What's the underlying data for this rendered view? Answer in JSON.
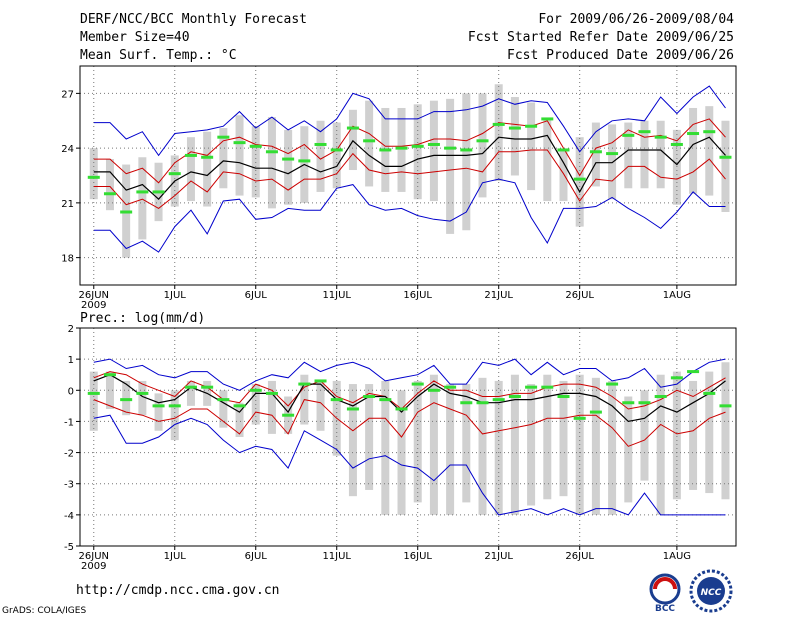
{
  "header": {
    "title": "DERF/NCC/BCC Monthly Forecast",
    "member_size": "Member Size=40",
    "variable_top": "Mean Surf. Temp.: °C",
    "period": "For 2009/06/26-2009/08/04",
    "started": "Fcst Started Refer Date 2009/06/25",
    "produced": "Fcst Produced Date 2009/06/26"
  },
  "footer": {
    "url": "http://cmdp.ncc.cma.gov.cn",
    "credit": "GrADS: COLA/IGES",
    "logo_bcc": "BCC",
    "logo_ncc": "NCC"
  },
  "colors": {
    "envelope": "#0000cc",
    "spread": "#cc0000",
    "mean": "#000000",
    "marker": "#33dd33",
    "box": "#d0d0d0",
    "grid": "#777777"
  },
  "chart_data": [
    {
      "type": "line",
      "title": "Mean Surf. Temp.: °C",
      "x_days": 40,
      "xticks": [
        {
          "day": 1,
          "label": "26JUN",
          "sub": "2009"
        },
        {
          "day": 6,
          "label": "1JUL"
        },
        {
          "day": 11,
          "label": "6JUL"
        },
        {
          "day": 16,
          "label": "11JUL"
        },
        {
          "day": 21,
          "label": "16JUL"
        },
        {
          "day": 26,
          "label": "21JUL"
        },
        {
          "day": 31,
          "label": "26JUL"
        },
        {
          "day": 37,
          "label": "1AUG"
        }
      ],
      "ylim": [
        16.5,
        28.5
      ],
      "yticks": [
        18,
        21,
        24,
        27
      ],
      "series": [
        {
          "name": "max",
          "values": [
            25.4,
            25.4,
            24.5,
            24.9,
            23.6,
            24.8,
            24.9,
            25.0,
            25.2,
            26.0,
            25.1,
            25.7,
            25.0,
            25.5,
            24.9,
            25.6,
            27.0,
            26.7,
            25.6,
            25.6,
            25.6,
            26.0,
            26.0,
            26.1,
            26.3,
            26.7,
            26.4,
            26.6,
            26.5,
            25.2,
            23.8,
            24.9,
            25.5,
            25.6,
            25.5,
            26.8,
            25.9,
            26.8,
            27.4,
            26.2
          ]
        },
        {
          "name": "upper",
          "values": [
            23.4,
            23.4,
            22.6,
            22.9,
            22.1,
            23.2,
            23.8,
            23.6,
            24.4,
            24.6,
            24.2,
            24.1,
            23.7,
            24.2,
            23.4,
            23.9,
            25.2,
            24.8,
            24.1,
            24.1,
            24.2,
            24.5,
            24.5,
            24.4,
            24.8,
            25.4,
            25.3,
            25.2,
            25.5,
            24.0,
            22.5,
            24.0,
            24.3,
            25.0,
            24.6,
            24.7,
            24.4,
            25.3,
            25.6,
            24.6
          ]
        },
        {
          "name": "mean",
          "values": [
            22.7,
            22.7,
            21.7,
            22.0,
            21.2,
            22.2,
            22.7,
            22.5,
            23.3,
            23.2,
            22.9,
            22.9,
            22.6,
            23.1,
            22.7,
            23.0,
            24.4,
            23.6,
            23.0,
            23.0,
            23.4,
            23.6,
            23.6,
            23.6,
            23.7,
            24.6,
            24.5,
            24.5,
            24.7,
            23.2,
            21.6,
            23.2,
            23.2,
            23.9,
            23.9,
            23.9,
            23.1,
            24.2,
            24.6,
            23.6
          ]
        },
        {
          "name": "lower",
          "values": [
            21.9,
            21.9,
            20.9,
            21.2,
            20.7,
            21.4,
            22.2,
            21.6,
            22.7,
            22.6,
            22.2,
            22.3,
            21.7,
            22.3,
            22.3,
            22.6,
            23.7,
            22.8,
            22.6,
            22.7,
            22.6,
            22.7,
            22.8,
            22.9,
            22.7,
            23.8,
            23.8,
            23.9,
            23.9,
            22.6,
            21.1,
            22.3,
            22.2,
            23.0,
            23.0,
            22.4,
            22.3,
            22.7,
            23.4,
            22.3
          ]
        },
        {
          "name": "min",
          "values": [
            19.5,
            19.5,
            18.5,
            18.9,
            18.3,
            19.7,
            20.6,
            19.3,
            21.1,
            21.2,
            20.1,
            20.2,
            20.7,
            20.6,
            20.6,
            21.8,
            22.0,
            20.9,
            20.6,
            20.7,
            20.3,
            20.1,
            20.0,
            20.5,
            22.1,
            22.3,
            22.1,
            20.2,
            18.8,
            20.7,
            20.7,
            20.8,
            21.3,
            20.7,
            20.2,
            19.6,
            20.5,
            21.6,
            20.8,
            20.8
          ]
        },
        {
          "name": "box_top",
          "values": [
            24.0,
            23.4,
            23.1,
            23.5,
            23.2,
            23.6,
            24.6,
            24.9,
            25.1,
            25.8,
            25.2,
            25.7,
            25.0,
            25.2,
            25.5,
            25.4,
            26.1,
            26.6,
            26.2,
            26.2,
            26.4,
            26.6,
            26.7,
            27.0,
            27.0,
            27.5,
            26.8,
            26.5,
            25.6,
            23.9,
            24.6,
            25.4,
            25.3,
            25.4,
            25.5,
            25.5,
            25.0,
            26.2,
            26.3,
            25.5
          ]
        },
        {
          "name": "box_bottom",
          "values": [
            21.2,
            20.6,
            18.0,
            19.0,
            20.0,
            20.8,
            21.1,
            20.8,
            21.8,
            21.4,
            21.3,
            20.7,
            20.9,
            21.0,
            21.6,
            21.8,
            22.8,
            21.9,
            21.6,
            21.6,
            21.2,
            21.1,
            19.3,
            19.5,
            21.3,
            22.2,
            22.5,
            21.7,
            21.1,
            21.1,
            19.7,
            21.9,
            21.2,
            21.8,
            21.8,
            21.8,
            20.9,
            21.5,
            21.4,
            20.5
          ]
        },
        {
          "name": "median_marker",
          "values": [
            22.4,
            21.5,
            20.5,
            21.6,
            21.6,
            22.6,
            23.6,
            23.5,
            24.6,
            24.3,
            24.1,
            23.8,
            23.4,
            23.3,
            24.2,
            23.9,
            25.1,
            24.4,
            23.9,
            24.0,
            24.1,
            24.2,
            24.0,
            23.9,
            24.4,
            25.3,
            25.1,
            25.2,
            25.6,
            23.9,
            22.3,
            23.8,
            23.7,
            24.7,
            24.9,
            24.6,
            24.2,
            24.8,
            24.9,
            23.5
          ]
        }
      ]
    },
    {
      "type": "line",
      "title": "Prec.: log(mm/d)",
      "x_days": 40,
      "xticks": [
        {
          "day": 1,
          "label": "26JUN",
          "sub": "2009"
        },
        {
          "day": 6,
          "label": "1JUL"
        },
        {
          "day": 11,
          "label": "6JUL"
        },
        {
          "day": 16,
          "label": "11JUL"
        },
        {
          "day": 21,
          "label": "16JUL"
        },
        {
          "day": 26,
          "label": "21JUL"
        },
        {
          "day": 31,
          "label": "26JUL"
        },
        {
          "day": 37,
          "label": "1AUG"
        }
      ],
      "ylim": [
        -5,
        2
      ],
      "yticks": [
        -5,
        -4,
        -3,
        -2,
        -1,
        0,
        1,
        2
      ],
      "series": [
        {
          "name": "max",
          "values": [
            0.9,
            1.0,
            0.7,
            0.8,
            0.5,
            0.4,
            0.6,
            0.6,
            0.2,
            0.0,
            0.3,
            0.5,
            0.4,
            0.9,
            0.6,
            0.8,
            0.9,
            0.7,
            0.3,
            0.4,
            0.5,
            0.8,
            0.2,
            0.2,
            0.9,
            0.8,
            1.0,
            0.5,
            0.9,
            0.5,
            0.7,
            0.7,
            0.3,
            0.4,
            0.7,
            0.1,
            0.2,
            0.6,
            0.9,
            1.0
          ]
        },
        {
          "name": "upper",
          "values": [
            0.4,
            0.6,
            0.5,
            0.2,
            0.0,
            -0.2,
            0.3,
            0.1,
            -0.3,
            -0.4,
            0.2,
            0.0,
            -0.5,
            0.1,
            0.3,
            -0.2,
            -0.4,
            -0.1,
            -0.2,
            -0.6,
            -0.1,
            0.3,
            0.0,
            0.0,
            -0.2,
            -0.2,
            -0.1,
            -0.1,
            0.1,
            0.2,
            0.2,
            0.1,
            -0.2,
            -0.6,
            -0.5,
            -0.3,
            0.0,
            -0.2,
            0.1,
            0.4
          ]
        },
        {
          "name": "mean",
          "values": [
            0.3,
            0.5,
            0.2,
            -0.2,
            -0.4,
            -0.3,
            0.1,
            -0.1,
            -0.4,
            -0.7,
            -0.1,
            -0.1,
            -0.7,
            0.2,
            0.2,
            -0.3,
            -0.5,
            -0.2,
            -0.2,
            -0.7,
            -0.2,
            0.2,
            -0.1,
            -0.2,
            -0.4,
            -0.4,
            -0.3,
            -0.3,
            -0.2,
            -0.1,
            -0.1,
            -0.2,
            -0.5,
            -1.0,
            -0.9,
            -0.5,
            -0.7,
            -0.4,
            -0.1,
            0.3
          ]
        },
        {
          "name": "lower",
          "values": [
            -0.3,
            -0.5,
            -0.7,
            -0.8,
            -1.0,
            -0.9,
            -0.6,
            -0.6,
            -1.0,
            -1.4,
            -0.7,
            -0.8,
            -1.4,
            -0.3,
            -0.4,
            -0.9,
            -1.3,
            -0.9,
            -0.9,
            -1.5,
            -0.7,
            -0.4,
            -0.6,
            -0.8,
            -1.4,
            -1.3,
            -1.2,
            -1.1,
            -0.9,
            -0.9,
            -0.8,
            -0.8,
            -1.2,
            -1.8,
            -1.6,
            -1.1,
            -1.4,
            -1.3,
            -0.9,
            -0.7
          ]
        },
        {
          "name": "min",
          "values": [
            -0.9,
            -0.8,
            -1.7,
            -1.7,
            -1.5,
            -1.1,
            -0.9,
            -1.1,
            -1.6,
            -2.0,
            -1.8,
            -1.9,
            -2.5,
            -1.3,
            -1.6,
            -1.9,
            -2.5,
            -2.2,
            -2.1,
            -2.4,
            -2.5,
            -2.9,
            -2.4,
            -2.4,
            -3.3,
            -4.0,
            -3.9,
            -3.8,
            -4.0,
            -3.8,
            -4.0,
            -3.8,
            -3.8,
            -4.0,
            -3.3,
            -4.0,
            -4.0,
            -4.0,
            -4.0,
            -4.0
          ]
        },
        {
          "name": "box_top",
          "values": [
            0.6,
            0.6,
            0.3,
            0.3,
            -0.1,
            0.0,
            0.3,
            0.3,
            0.0,
            -0.4,
            0.2,
            0.3,
            -0.2,
            0.5,
            0.3,
            0.3,
            0.2,
            0.2,
            0.3,
            0.0,
            0.3,
            0.5,
            0.2,
            0.2,
            0.4,
            0.3,
            0.5,
            0.2,
            0.5,
            0.3,
            0.5,
            0.4,
            0.3,
            -0.2,
            0.0,
            0.5,
            0.6,
            0.3,
            0.6,
            0.9
          ]
        },
        {
          "name": "box_bottom",
          "values": [
            -1.3,
            -0.6,
            -0.8,
            -0.8,
            -1.3,
            -1.6,
            -0.5,
            -0.5,
            -1.2,
            -1.5,
            -1.1,
            -1.4,
            -1.4,
            -1.1,
            -1.3,
            -2.1,
            -3.4,
            -3.2,
            -4.0,
            -4.0,
            -3.6,
            -4.0,
            -4.0,
            -3.6,
            -4.0,
            -4.0,
            -4.0,
            -3.7,
            -3.5,
            -3.4,
            -4.0,
            -4.0,
            -4.0,
            -3.6,
            -2.9,
            -4.0,
            -3.5,
            -3.2,
            -3.3,
            -3.5
          ]
        },
        {
          "name": "median_marker",
          "values": [
            -0.1,
            0.5,
            -0.3,
            -0.1,
            -0.5,
            -0.5,
            0.1,
            0.1,
            -0.3,
            -0.5,
            0.0,
            -0.1,
            -0.8,
            0.2,
            0.3,
            -0.3,
            -0.6,
            -0.2,
            -0.3,
            -0.6,
            0.2,
            0.0,
            0.1,
            -0.4,
            -0.4,
            -0.3,
            -0.2,
            0.1,
            0.1,
            -0.2,
            -0.9,
            -0.7,
            0.2,
            -0.4,
            -0.4,
            -0.2,
            0.4,
            0.6,
            -0.1,
            -0.5
          ]
        }
      ]
    }
  ]
}
